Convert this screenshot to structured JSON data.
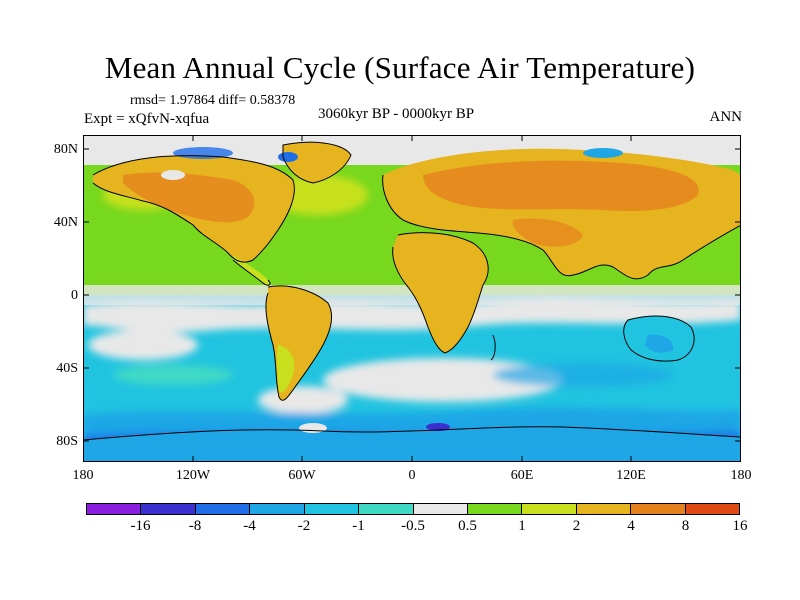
{
  "title": "Mean Annual Cycle (Surface Air Temperature)",
  "stats": "rmsd= 1.97864 diff= 0.58378",
  "experiment": "Expt = xQfvN-xqfua",
  "period": "3060kyr BP - 0000kyr BP",
  "season": "ANN",
  "y_axis_labels": [
    "80N",
    "40N",
    "0",
    "40S",
    "80S"
  ],
  "x_axis_labels": [
    "180",
    "120W",
    "60W",
    "0",
    "60E",
    "120E",
    "180"
  ],
  "colorbar": {
    "colors": [
      "#8a1fe0",
      "#3c2fd0",
      "#1f6ee8",
      "#1fa6e6",
      "#21c4e0",
      "#3fd9c6",
      "#e8e8e8",
      "#78d81e",
      "#c8e01e",
      "#e6b41e",
      "#e6821e",
      "#e04a14"
    ],
    "labels": [
      "-16",
      "-8",
      "-4",
      "-2",
      "-1",
      "-0.5",
      "0.5",
      "1",
      "2",
      "4",
      "8",
      "16"
    ]
  }
}
